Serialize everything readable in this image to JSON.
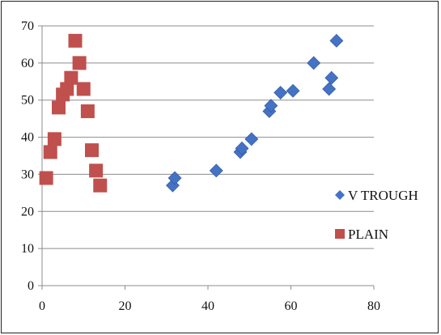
{
  "chart_data": {
    "type": "scatter",
    "title": "",
    "xlabel": "",
    "ylabel": "",
    "xlim": [
      0,
      80
    ],
    "ylim": [
      0,
      70
    ],
    "x_ticks": [
      "0",
      "20",
      "40",
      "60",
      "80"
    ],
    "y_ticks": [
      "0",
      "10",
      "20",
      "30",
      "40",
      "50",
      "60",
      "70"
    ],
    "grid": "horizontal",
    "legend_position": "right",
    "series": [
      {
        "name": "V TROUGH",
        "color": "#4472c4",
        "marker": "diamond",
        "points": [
          [
            31.5,
            27
          ],
          [
            32,
            29
          ],
          [
            42,
            31
          ],
          [
            47.8,
            36
          ],
          [
            48.2,
            37
          ],
          [
            50.5,
            39.5
          ],
          [
            54.8,
            47
          ],
          [
            55.2,
            48.5
          ],
          [
            57.5,
            52
          ],
          [
            60.5,
            52.5
          ],
          [
            65.5,
            60
          ],
          [
            69.2,
            53
          ],
          [
            69.8,
            56
          ],
          [
            71,
            66
          ]
        ]
      },
      {
        "name": "PLAIN",
        "color": "#c0504d",
        "marker": "square",
        "points": [
          [
            1,
            29
          ],
          [
            2,
            36
          ],
          [
            3,
            39.5
          ],
          [
            4,
            48
          ],
          [
            5,
            51.5
          ],
          [
            6,
            53
          ],
          [
            7,
            56
          ],
          [
            8,
            66
          ],
          [
            9,
            60
          ],
          [
            10,
            53
          ],
          [
            11,
            47
          ],
          [
            12,
            36.5
          ],
          [
            13,
            31
          ],
          [
            14,
            27
          ]
        ]
      }
    ]
  }
}
